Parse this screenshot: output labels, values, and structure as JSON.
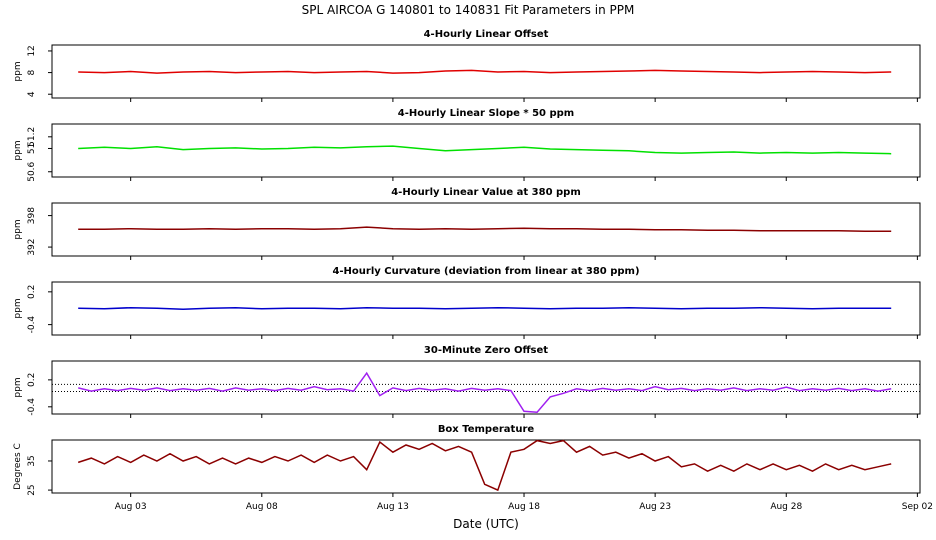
{
  "title": "SPL   AIRCOA G   140801 to 140831   Fit Parameters in PPM",
  "chart_data": [
    {
      "type": "line",
      "title": "4-Hourly Linear Offset",
      "ylabel": "ppm",
      "color": "#e00000",
      "xlim": [
        0,
        33.1
      ],
      "ylim": [
        3.3,
        13.1
      ],
      "yticks": [
        4,
        8,
        12
      ],
      "x": [
        1,
        2,
        3,
        4,
        5,
        6,
        7,
        8,
        9,
        10,
        11,
        12,
        13,
        14,
        15,
        16,
        17,
        18,
        19,
        20,
        21,
        22,
        23,
        24,
        25,
        26,
        27,
        28,
        29,
        30,
        31,
        32
      ],
      "values": [
        8.1,
        8.0,
        8.2,
        7.9,
        8.1,
        8.2,
        8.0,
        8.1,
        8.2,
        8.0,
        8.1,
        8.2,
        7.9,
        8.0,
        8.3,
        8.4,
        8.1,
        8.2,
        8.0,
        8.1,
        8.2,
        8.3,
        8.4,
        8.3,
        8.2,
        8.1,
        8.0,
        8.1,
        8.2,
        8.1,
        8.0,
        8.1
      ]
    },
    {
      "type": "line",
      "title": "4-Hourly Linear Slope * 50 ppm",
      "ylabel": "ppm",
      "color": "#00e000",
      "xlim": [
        0,
        33.1
      ],
      "ylim": [
        50.51,
        51.42
      ],
      "yticks": [
        50.6,
        {
          "value": 51.0,
          "label": "51"
        },
        51.2
      ],
      "x": [
        1,
        2,
        3,
        4,
        5,
        6,
        7,
        8,
        9,
        10,
        11,
        12,
        13,
        14,
        15,
        16,
        17,
        18,
        19,
        20,
        21,
        22,
        23,
        24,
        25,
        26,
        27,
        28,
        29,
        30,
        31,
        32
      ],
      "values": [
        51.0,
        51.02,
        51.0,
        51.03,
        50.98,
        51.0,
        51.01,
        50.99,
        51.0,
        51.02,
        51.01,
        51.03,
        51.04,
        51.0,
        50.96,
        50.98,
        51.0,
        51.02,
        50.99,
        50.98,
        50.97,
        50.96,
        50.93,
        50.92,
        50.93,
        50.94,
        50.92,
        50.93,
        50.92,
        50.93,
        50.92,
        50.91
      ]
    },
    {
      "type": "line",
      "title": "4-Hourly Linear Value at 380 ppm",
      "ylabel": "ppm",
      "color": "#8b0000",
      "xlim": [
        0,
        33.1
      ],
      "ylim": [
        390.3,
        400.4
      ],
      "yticks": [
        392,
        398
      ],
      "x": [
        1,
        2,
        3,
        4,
        5,
        6,
        7,
        8,
        9,
        10,
        11,
        12,
        13,
        14,
        15,
        16,
        17,
        18,
        19,
        20,
        21,
        22,
        23,
        24,
        25,
        26,
        27,
        28,
        29,
        30,
        31,
        32
      ],
      "values": [
        395.4,
        395.4,
        395.5,
        395.4,
        395.4,
        395.5,
        395.4,
        395.5,
        395.5,
        395.4,
        395.5,
        395.8,
        395.5,
        395.4,
        395.5,
        395.4,
        395.5,
        395.6,
        395.5,
        395.5,
        395.4,
        395.4,
        395.3,
        395.3,
        395.2,
        395.2,
        395.1,
        395.1,
        395.1,
        395.1,
        395.0,
        395.0
      ]
    },
    {
      "type": "line",
      "title": "4-Hourly Curvature (deviation from linear at 380 ppm)",
      "ylabel": "ppm",
      "color": "#0000cc",
      "xlim": [
        0,
        33.1
      ],
      "ylim": [
        -0.59,
        0.38
      ],
      "yticks": [
        -0.4,
        0.2
      ],
      "x": [
        1,
        2,
        3,
        4,
        5,
        6,
        7,
        8,
        9,
        10,
        11,
        12,
        13,
        14,
        15,
        16,
        17,
        18,
        19,
        20,
        21,
        22,
        23,
        24,
        25,
        26,
        27,
        28,
        29,
        30,
        31,
        32
      ],
      "values": [
        -0.1,
        -0.11,
        -0.09,
        -0.1,
        -0.12,
        -0.1,
        -0.09,
        -0.11,
        -0.1,
        -0.1,
        -0.11,
        -0.09,
        -0.1,
        -0.1,
        -0.11,
        -0.1,
        -0.09,
        -0.1,
        -0.11,
        -0.1,
        -0.1,
        -0.09,
        -0.1,
        -0.11,
        -0.1,
        -0.1,
        -0.09,
        -0.1,
        -0.11,
        -0.1,
        -0.1,
        -0.1
      ]
    },
    {
      "type": "line",
      "title": "30-Minute Zero Offset",
      "ylabel": "ppm",
      "color": "#a020f0",
      "xlim": [
        0,
        33.1
      ],
      "ylim": [
        -0.56,
        0.62
      ],
      "yticks": [
        -0.4,
        0.2
      ],
      "hlines": [
        0.1,
        -0.06
      ],
      "x": [
        1,
        1.5,
        2,
        2.5,
        3,
        3.5,
        4,
        4.5,
        5,
        5.5,
        6,
        6.5,
        7,
        7.5,
        8,
        8.5,
        9,
        9.5,
        10,
        10.5,
        11,
        11.5,
        12,
        12.5,
        13,
        13.5,
        14,
        14.5,
        15,
        15.5,
        16,
        16.5,
        17,
        17.5,
        18,
        18.5,
        19,
        19.5,
        20,
        20.5,
        21,
        21.5,
        22,
        22.5,
        23,
        23.5,
        24,
        24.5,
        25,
        25.5,
        26,
        26.5,
        27,
        27.5,
        28,
        28.5,
        29,
        29.5,
        30,
        30.5,
        31,
        31.5,
        32
      ],
      "values": [
        0.02,
        -0.05,
        0.0,
        -0.04,
        0.01,
        -0.03,
        0.02,
        -0.04,
        0.0,
        -0.03,
        0.01,
        -0.05,
        0.02,
        -0.03,
        0.0,
        -0.04,
        0.01,
        -0.03,
        0.05,
        -0.02,
        0.0,
        -0.05,
        0.35,
        -0.15,
        0.02,
        -0.04,
        0.01,
        -0.03,
        0.0,
        -0.05,
        0.01,
        -0.03,
        0.0,
        -0.04,
        -0.5,
        -0.52,
        -0.18,
        -0.1,
        0.0,
        -0.04,
        0.01,
        -0.03,
        0.0,
        -0.04,
        0.05,
        -0.02,
        0.01,
        -0.04,
        0.0,
        -0.03,
        0.02,
        -0.04,
        0.0,
        -0.03,
        0.04,
        -0.04,
        0.0,
        -0.03,
        0.01,
        -0.04,
        0.0,
        -0.05,
        0.0
      ]
    },
    {
      "type": "line",
      "title": "Box Temperature",
      "ylabel": "Degrees C",
      "xlabel": "Date (UTC)",
      "color": "#8b0000",
      "xlim": [
        0,
        33.1
      ],
      "ylim": [
        24,
        42.2
      ],
      "yticks": [
        25,
        35
      ],
      "xticks": [
        {
          "value": 3,
          "label": "Aug 03"
        },
        {
          "value": 8,
          "label": "Aug 08"
        },
        {
          "value": 13,
          "label": "Aug 13"
        },
        {
          "value": 18,
          "label": "Aug 18"
        },
        {
          "value": 23,
          "label": "Aug 23"
        },
        {
          "value": 28,
          "label": "Aug 28"
        },
        {
          "value": 33,
          "label": "Sep 02"
        }
      ],
      "x": [
        1,
        1.5,
        2,
        2.5,
        3,
        3.5,
        4,
        4.5,
        5,
        5.5,
        6,
        6.5,
        7,
        7.5,
        8,
        8.5,
        9,
        9.5,
        10,
        10.5,
        11,
        11.5,
        12,
        12.5,
        13,
        13.5,
        14,
        14.5,
        15,
        15.5,
        16,
        16.5,
        17,
        17.5,
        18,
        18.5,
        19,
        19.5,
        20,
        20.5,
        21,
        21.5,
        22,
        22.5,
        23,
        23.5,
        24,
        24.5,
        25,
        25.5,
        26,
        26.5,
        27,
        27.5,
        28,
        28.5,
        29,
        29.5,
        30,
        30.5,
        31,
        31.5,
        32
      ],
      "values": [
        34.5,
        36,
        34,
        36.5,
        34.5,
        37,
        35,
        37.5,
        35,
        36.5,
        34,
        36,
        34,
        36,
        34.5,
        36.5,
        35,
        37,
        34.5,
        37,
        35,
        36.5,
        32,
        41.5,
        38,
        40.5,
        39,
        41,
        38.5,
        40,
        38,
        27,
        25,
        38,
        39,
        42,
        41,
        42,
        38,
        40,
        37,
        38,
        36,
        37.5,
        35,
        36.5,
        33,
        34,
        31.5,
        33.5,
        31.5,
        34,
        32,
        34,
        32,
        33.5,
        31.5,
        34,
        32,
        33.5,
        32,
        33,
        34
      ]
    }
  ]
}
